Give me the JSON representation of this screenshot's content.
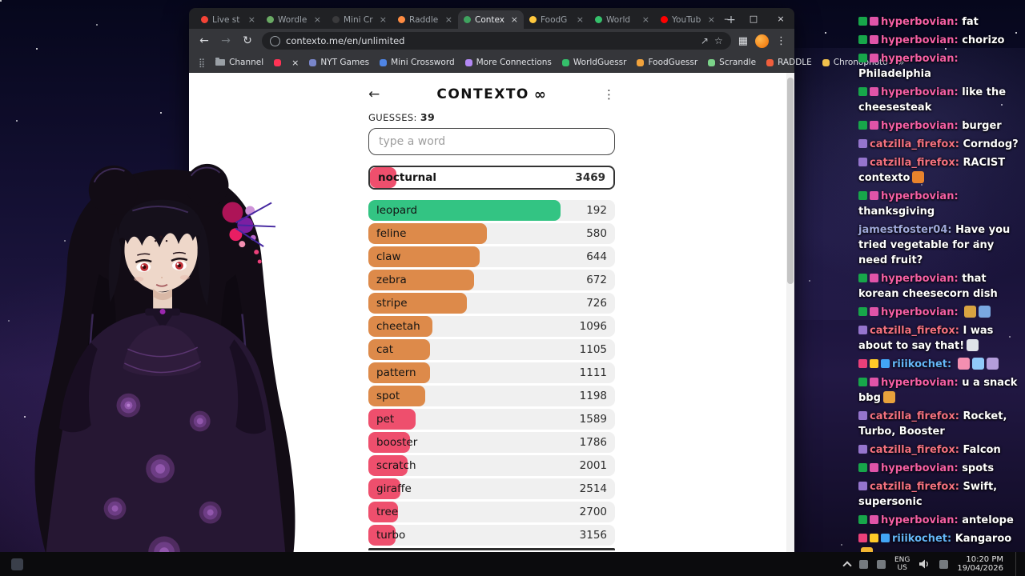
{
  "browser": {
    "window_controls": {
      "minimize": "–",
      "maximize": "□",
      "close": "×"
    },
    "tab_close": "×",
    "new_tab": "+",
    "tabs": [
      {
        "label": "Live st",
        "color": "#f44336",
        "active": false
      },
      {
        "label": "Wordle",
        "color": "#6aaa64",
        "active": false
      },
      {
        "label": "Mini Cr",
        "color": "#3a3a3c",
        "active": false
      },
      {
        "label": "Raddle",
        "color": "#ff8c42",
        "active": false
      },
      {
        "label": "Contex",
        "color": "#3fa35f",
        "active": true
      },
      {
        "label": "FoodG",
        "color": "#ffc83d",
        "active": false
      },
      {
        "label": "World",
        "color": "#35c06b",
        "active": false
      },
      {
        "label": "YouTub",
        "color": "#ff0000",
        "active": false
      }
    ],
    "nav": {
      "back": "←",
      "forward": "→",
      "reload": "↻"
    },
    "url": "contexto.me/en/unlimited",
    "icons": {
      "share": "↗",
      "bookmark_star": "☆",
      "extensions": "▦",
      "menu": "⋮"
    },
    "bookmarks": {
      "overflow": "»",
      "items": [
        {
          "label": "",
          "type": "glyph",
          "glyph": "⣿",
          "color": "#9aa0a6"
        },
        {
          "label": "Channel",
          "type": "folder",
          "color": "#9aa0a6"
        },
        {
          "label": "",
          "type": "dot",
          "color": "#ff3355"
        },
        {
          "label": "",
          "type": "glyph",
          "glyph": "×",
          "color": "#e8eaed"
        },
        {
          "label": "NYT Games",
          "type": "dot",
          "color": "#7986cb"
        },
        {
          "label": "Mini Crossword",
          "type": "dot",
          "color": "#4f85e5"
        },
        {
          "label": "More Connections",
          "type": "dot",
          "color": "#b388f5"
        },
        {
          "label": "WorldGuessr",
          "type": "dot",
          "color": "#35c06b"
        },
        {
          "label": "FoodGuessr",
          "type": "dot",
          "color": "#f2a33c"
        },
        {
          "label": "Scrandle",
          "type": "dot",
          "color": "#7bd389"
        },
        {
          "label": "RADDLE",
          "type": "dot",
          "color": "#f05e3c"
        },
        {
          "label": "Chronophoto",
          "type": "dot",
          "color": "#f0c04c"
        }
      ]
    }
  },
  "contexto": {
    "back_icon": "←",
    "title": "CONTEXTO",
    "infinity": "∞",
    "menu_icon": "⋮",
    "guesses_label": "GUESSES:",
    "guesses_count": "39",
    "input_placeholder": "type a word",
    "current_guess": {
      "word": "nocturnal",
      "rank": "3469",
      "width_pct": 11,
      "color": "#ee4f6d"
    },
    "guesses": [
      {
        "word": "leopard",
        "rank": "192",
        "width_pct": 78,
        "color": "#33c483"
      },
      {
        "word": "feline",
        "rank": "580",
        "width_pct": 48,
        "color": "#dd8a4a"
      },
      {
        "word": "claw",
        "rank": "644",
        "width_pct": 45,
        "color": "#dd8a4a"
      },
      {
        "word": "zebra",
        "rank": "672",
        "width_pct": 43,
        "color": "#dd8a4a"
      },
      {
        "word": "stripe",
        "rank": "726",
        "width_pct": 40,
        "color": "#dd8a4a"
      },
      {
        "word": "cheetah",
        "rank": "1096",
        "width_pct": 26,
        "color": "#dd8a4a"
      },
      {
        "word": "cat",
        "rank": "1105",
        "width_pct": 25,
        "color": "#dd8a4a"
      },
      {
        "word": "pattern",
        "rank": "1111",
        "width_pct": 25,
        "color": "#dd8a4a"
      },
      {
        "word": "spot",
        "rank": "1198",
        "width_pct": 23,
        "color": "#dd8a4a"
      },
      {
        "word": "pet",
        "rank": "1589",
        "width_pct": 19,
        "color": "#ee4f6d"
      },
      {
        "word": "booster",
        "rank": "1786",
        "width_pct": 17,
        "color": "#ee4f6d"
      },
      {
        "word": "scratch",
        "rank": "2001",
        "width_pct": 16,
        "color": "#ee4f6d"
      },
      {
        "word": "giraffe",
        "rank": "2514",
        "width_pct": 13,
        "color": "#ee4f6d"
      },
      {
        "word": "tree",
        "rank": "2700",
        "width_pct": 12,
        "color": "#ee4f6d"
      },
      {
        "word": "turbo",
        "rank": "3156",
        "width_pct": 11,
        "color": "#ee4f6d"
      }
    ]
  },
  "chat": {
    "messages": [
      {
        "badges": [
          "#17a64a",
          "#e054a8"
        ],
        "user": "hyperbovian",
        "user_color": "#f45fa4",
        "text": "fat",
        "emotes": []
      },
      {
        "badges": [
          "#17a64a",
          "#e054a8"
        ],
        "user": "hyperbovian",
        "user_color": "#f45fa4",
        "text": "chorizo",
        "emotes": []
      },
      {
        "badges": [
          "#17a64a",
          "#e054a8"
        ],
        "user": "hyperbovian",
        "user_color": "#f45fa4",
        "text": "Philadelphia",
        "emotes": []
      },
      {
        "badges": [
          "#17a64a",
          "#e054a8"
        ],
        "user": "hyperbovian",
        "user_color": "#f45fa4",
        "text": "like the cheesesteak",
        "emotes": []
      },
      {
        "badges": [
          "#17a64a",
          "#e054a8"
        ],
        "user": "hyperbovian",
        "user_color": "#f45fa4",
        "text": "burger",
        "emotes": []
      },
      {
        "badges": [
          "#9575cd"
        ],
        "user": "catzilla_firefox",
        "user_color": "#f4717f",
        "text": "Corndog?",
        "emotes": []
      },
      {
        "badges": [
          "#9575cd"
        ],
        "user": "catzilla_firefox",
        "user_color": "#f4717f",
        "text": "RACIST contexto",
        "emotes": [
          "#e8832c"
        ]
      },
      {
        "badges": [
          "#17a64a",
          "#e054a8"
        ],
        "user": "hyperbovian",
        "user_color": "#f45fa4",
        "text": "thanksgiving",
        "emotes": []
      },
      {
        "badges": [],
        "user": "jamestfoster04",
        "user_color": "#9fa8da",
        "text": "Have you tried vegetable for any need fruit?",
        "emotes": []
      },
      {
        "badges": [
          "#17a64a",
          "#e054a8"
        ],
        "user": "hyperbovian",
        "user_color": "#f45fa4",
        "text": "that korean cheesecorn dish",
        "emotes": []
      },
      {
        "badges": [
          "#17a64a",
          "#e054a8"
        ],
        "user": "hyperbovian",
        "user_color": "#f45fa4",
        "text": "",
        "emotes": [
          "#d9a441",
          "#79a8e0"
        ]
      },
      {
        "badges": [
          "#9575cd"
        ],
        "user": "catzilla_firefox",
        "user_color": "#f4717f",
        "text": "I was about to say that!",
        "emotes": [
          "#dfe3e8"
        ]
      },
      {
        "badges": [
          "#ec407a",
          "#ffca28",
          "#42a5f5"
        ],
        "user": "riiikochet",
        "user_color": "#64b5f6",
        "text": "",
        "emotes": [
          "#f48fb1",
          "#90caf9",
          "#b39ddb"
        ]
      },
      {
        "badges": [
          "#17a64a",
          "#e054a8"
        ],
        "user": "hyperbovian",
        "user_color": "#f45fa4",
        "text": "u a snack bbg",
        "emotes": [
          "#e8a23c"
        ]
      },
      {
        "badges": [
          "#9575cd"
        ],
        "user": "catzilla_firefox",
        "user_color": "#f4717f",
        "text": "Rocket, Turbo, Booster",
        "emotes": []
      },
      {
        "badges": [
          "#9575cd"
        ],
        "user": "catzilla_firefox",
        "user_color": "#f4717f",
        "text": "Falcon",
        "emotes": []
      },
      {
        "badges": [
          "#17a64a",
          "#e054a8"
        ],
        "user": "hyperbovian",
        "user_color": "#f45fa4",
        "text": "spots",
        "emotes": []
      },
      {
        "badges": [
          "#9575cd"
        ],
        "user": "catzilla_firefox",
        "user_color": "#f4717f",
        "text": "Swift, supersonic",
        "emotes": []
      },
      {
        "badges": [
          "#17a64a",
          "#e054a8"
        ],
        "user": "hyperbovian",
        "user_color": "#f45fa4",
        "text": "antelope",
        "emotes": []
      },
      {
        "badges": [
          "#ec407a",
          "#ffca28",
          "#42a5f5"
        ],
        "user": "riiikochet",
        "user_color": "#64b5f6",
        "text": "Kangaroo",
        "emotes": [
          "#f2b632"
        ]
      }
    ]
  },
  "taskbar": {
    "lang": "ENG",
    "region": "US",
    "time": "10:20 PM",
    "date": "19/04/2026"
  }
}
